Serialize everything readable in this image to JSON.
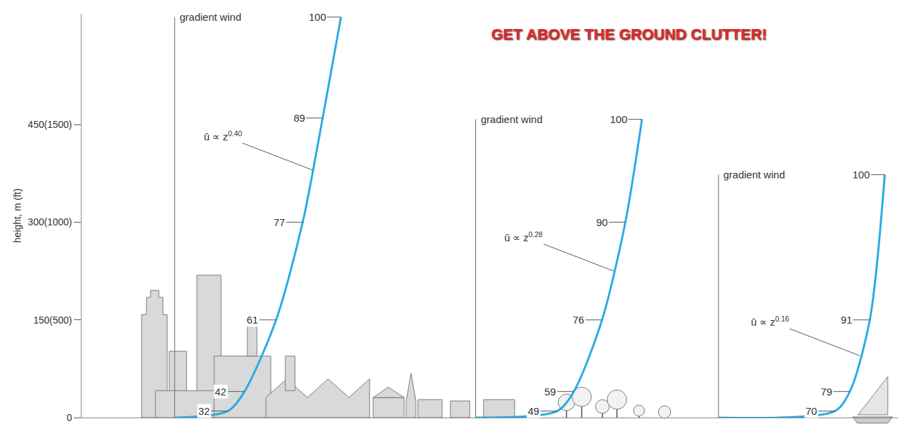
{
  "title": "GET ABOVE THE GROUND CLUTTER!",
  "chart_data": [
    {
      "type": "line",
      "ylabel": "height, m (ft)",
      "ylim": [
        0,
        620
      ],
      "yticks": [
        0,
        {
          "value": 150,
          "label": "150(500)"
        },
        {
          "value": 300,
          "label": "300(1000)"
        },
        {
          "value": 450,
          "label": "450(1500)"
        }
      ],
      "xlim": [
        -56,
        144
      ],
      "grid": false,
      "tick_labels": "y",
      "color": "#29abe2",
      "gradient_label": "gradient wind",
      "formula": {
        "text": "ū ∝ z",
        "superscript": "0.40"
      },
      "values": [
        0,
        32,
        42,
        61,
        77,
        89,
        100
      ],
      "heights": [
        0,
        10,
        40,
        150,
        300,
        460,
        615
      ],
      "value_labels": [
        null,
        "32",
        "42",
        "61",
        "77",
        "89",
        "100"
      ]
    },
    {
      "type": "line",
      "xlim": [
        -37,
        129
      ],
      "grid": false,
      "tick_labels": false,
      "color": "#29abe2",
      "gradient_label": "gradient wind",
      "formula": {
        "text": "ū ∝ z",
        "superscript": "0.28"
      },
      "values": [
        0,
        49,
        59,
        76,
        90,
        100
      ],
      "heights": [
        0,
        10,
        40,
        150,
        300,
        458
      ],
      "value_labels": [
        null,
        "49",
        "59",
        "76",
        "90",
        "100"
      ]
    },
    {
      "type": "line",
      "xlim": [
        -17,
        108
      ],
      "grid": false,
      "tick_labels": false,
      "color": "#29abe2",
      "gradient_label": "gradient wind",
      "formula": {
        "text": "ū ∝ z",
        "superscript": "0.16"
      },
      "values": [
        0,
        70,
        79,
        91,
        100
      ],
      "heights": [
        0,
        10,
        40,
        150,
        373
      ],
      "value_labels": [
        null,
        "70",
        "79",
        "91",
        "100"
      ]
    }
  ]
}
